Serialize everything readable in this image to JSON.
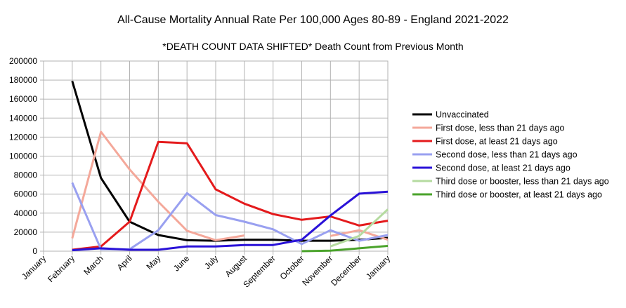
{
  "chart_data": {
    "type": "line",
    "title": "All-Cause Mortality Annual Rate Per 100,000 Ages 80-89 - England 2021-2022",
    "subtitle": "*DEATH COUNT DATA SHIFTED* Death Count from Previous Month",
    "xlabel": "",
    "ylabel": "",
    "categories": [
      "January",
      "February",
      "March",
      "April",
      "May",
      "June",
      "July",
      "August",
      "September",
      "October",
      "November",
      "December",
      "January"
    ],
    "ylim": [
      0,
      200000
    ],
    "yticks": [
      0,
      20000,
      40000,
      60000,
      80000,
      100000,
      120000,
      140000,
      160000,
      180000,
      200000
    ],
    "ytick_labels": [
      "0",
      "20000",
      "40000",
      "60000",
      "80000",
      "100000",
      "120000",
      "140000",
      "160000",
      "180000",
      "200000"
    ],
    "grid": true,
    "legend_position": "right",
    "series": [
      {
        "name": "Unvaccinated",
        "color": "#000000",
        "values": [
          null,
          179000,
          77000,
          31000,
          17000,
          11500,
          11000,
          12000,
          12000,
          11000,
          11000,
          12000,
          14000
        ]
      },
      {
        "name": "First dose, less than 21 days ago",
        "color": "#f4a89a",
        "values": [
          null,
          13500,
          125500,
          86000,
          52000,
          21500,
          11500,
          16500,
          null,
          null,
          16000,
          22000,
          12000
        ]
      },
      {
        "name": "First dose, at least 21 days ago",
        "color": "#e41a1c",
        "values": [
          null,
          1500,
          5000,
          31000,
          115000,
          113500,
          65000,
          50000,
          39000,
          33000,
          36500,
          27000,
          32000
        ]
      },
      {
        "name": "Second dose, less than 21 days ago",
        "color": "#99a0f0",
        "values": [
          null,
          72000,
          2000,
          2000,
          22000,
          61000,
          38000,
          31000,
          23000,
          7500,
          22000,
          11000,
          17000
        ]
      },
      {
        "name": "Second dose, at least 21 days ago",
        "color": "#2a12d8",
        "values": [
          null,
          1000,
          3000,
          1500,
          1500,
          5000,
          5000,
          6500,
          6500,
          12000,
          37500,
          60500,
          62500
        ]
      },
      {
        "name": "Third dose or booster, less than 21 days ago",
        "color": "#b5dba0",
        "values": [
          null,
          null,
          null,
          null,
          null,
          null,
          null,
          null,
          null,
          null,
          5000,
          16000,
          44000
        ]
      },
      {
        "name": "Third dose or booster, at least 21 days ago",
        "color": "#4aa32b",
        "values": [
          null,
          null,
          null,
          null,
          null,
          null,
          null,
          null,
          null,
          0,
          500,
          3000,
          5500
        ]
      }
    ]
  }
}
